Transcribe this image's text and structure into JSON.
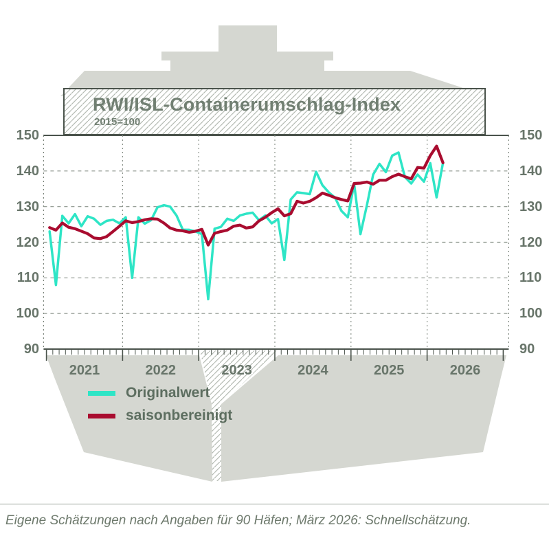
{
  "header": {
    "title": "RWI/ISL-Containerumschlag-Index",
    "subtitle": "2015=100"
  },
  "legend": {
    "items": [
      {
        "label": "Originalwert",
        "color": "#2ee5c6"
      },
      {
        "label": "saisonbereinigt",
        "color": "#a90c2f"
      }
    ]
  },
  "footer": {
    "text": "Eigene Schätzungen nach Angaben für 90 Häfen; März 2026: Schnellschätzung."
  },
  "axes": {
    "y_ticks": [
      150,
      140,
      130,
      120,
      110,
      100,
      90
    ],
    "x_labels": [
      "2021",
      "2022",
      "2023",
      "2024",
      "2025",
      "2026"
    ],
    "ylim": [
      90,
      150
    ]
  },
  "colors": {
    "series_original": "#2ee5c6",
    "series_adjusted": "#a90c2f",
    "silhouette_gray": "#d5d7d1",
    "hatch_line": "#b4bab2",
    "axis_dark": "#4a534b",
    "grid_gray": "#8a928a",
    "label_gray": "#68756a"
  },
  "chart_data": {
    "type": "line",
    "title": "RWI/ISL-Containerumschlag-Index",
    "subtitle": "2015=100",
    "x_start": "2021-01",
    "x_end": "2026-03",
    "x_unit": "month",
    "ylim": [
      90,
      150
    ],
    "grid": "dashed",
    "legend_position": "bottom-left",
    "x_tick_labels": [
      "2021",
      "2022",
      "2023",
      "2024",
      "2025",
      "2026"
    ],
    "series": [
      {
        "name": "Originalwert",
        "color": "#2ee5c6",
        "values": [
          123,
          108,
          127.4,
          125.3,
          127.9,
          124.5,
          127.3,
          126.6,
          124.9,
          126,
          126.3,
          125.3,
          127,
          110,
          127,
          125.2,
          126.2,
          129.8,
          130.4,
          130,
          127.5,
          123.5,
          123.5,
          123,
          122.3,
          104,
          123.8,
          124.3,
          126.6,
          126,
          127.5,
          128,
          128.3,
          126.2,
          127.5,
          125.3,
          126.5,
          115,
          132,
          134,
          133.8,
          133.5,
          139.8,
          136,
          134,
          132.5,
          128.8,
          127,
          136.4,
          122.3,
          130.3,
          139,
          142,
          139.7,
          144.3,
          145.2,
          138.3,
          136.5,
          139,
          137,
          142.2,
          132.6,
          142.3
        ]
      },
      {
        "name": "saisonbereinigt",
        "color": "#a90c2f",
        "values": [
          124.1,
          123.4,
          125.4,
          124.2,
          123.8,
          123.1,
          122.4,
          121.2,
          121,
          121.6,
          123,
          124.5,
          126,
          125.5,
          125.8,
          126.3,
          126.6,
          126.5,
          125.4,
          124,
          123.4,
          123.2,
          122.8,
          123.1,
          123.6,
          119.2,
          122.5,
          123,
          123.4,
          124.5,
          124.8,
          124,
          124.3,
          126,
          127,
          128.3,
          129.4,
          127.4,
          128,
          131.5,
          131,
          131.5,
          132.5,
          133.8,
          133.2,
          132.5,
          132,
          131.6,
          136.5,
          136.6,
          136.9,
          136.3,
          137.4,
          137.4,
          138.4,
          139.1,
          138.4,
          137.8,
          141,
          140.8,
          144.3,
          147,
          142.3
        ]
      }
    ]
  }
}
